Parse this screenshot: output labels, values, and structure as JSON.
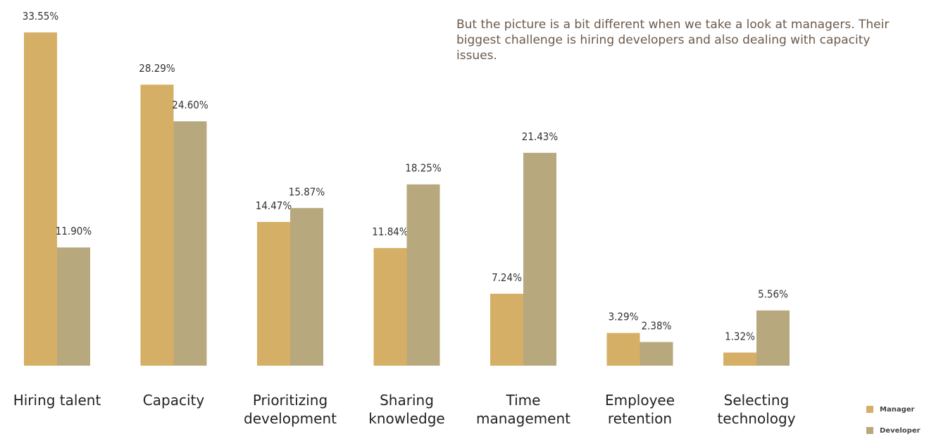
{
  "annotation": "But the picture is a bit different when we take a look at managers. Their biggest challenge is hiring developers and also dealing with capacity issues.",
  "colors": {
    "manager": "#d5af65",
    "developer": "#b8a87e",
    "label_text": "#333333",
    "category_text": "#222222"
  },
  "chart_data": {
    "type": "bar",
    "title": "",
    "xlabel": "",
    "ylabel": "",
    "legend_position": "bottom-right",
    "grid": false,
    "categories": [
      [
        "Hiring talent"
      ],
      [
        "Capacity"
      ],
      [
        "Prioritizing",
        "development"
      ],
      [
        "Sharing",
        "knowledge"
      ],
      [
        "Time",
        "management"
      ],
      [
        "Employee",
        "retention"
      ],
      [
        "Selecting",
        "technology"
      ]
    ],
    "series": [
      {
        "name": "Manager",
        "values": [
          33.55,
          28.29,
          14.47,
          11.84,
          7.24,
          3.29,
          1.32
        ],
        "labels": [
          "33.55%",
          "28.29%",
          "14.47%",
          "11.84%",
          "7.24%",
          "3.29%",
          "1.32%"
        ]
      },
      {
        "name": "Developer",
        "values": [
          11.9,
          24.6,
          15.87,
          18.25,
          21.43,
          2.38,
          5.56
        ],
        "labels": [
          "11.90%",
          "24.60%",
          "15.87%",
          "18.25%",
          "21.43%",
          "2.38%",
          "5.56%"
        ]
      }
    ],
    "ylim": [
      0,
      33.55
    ]
  }
}
